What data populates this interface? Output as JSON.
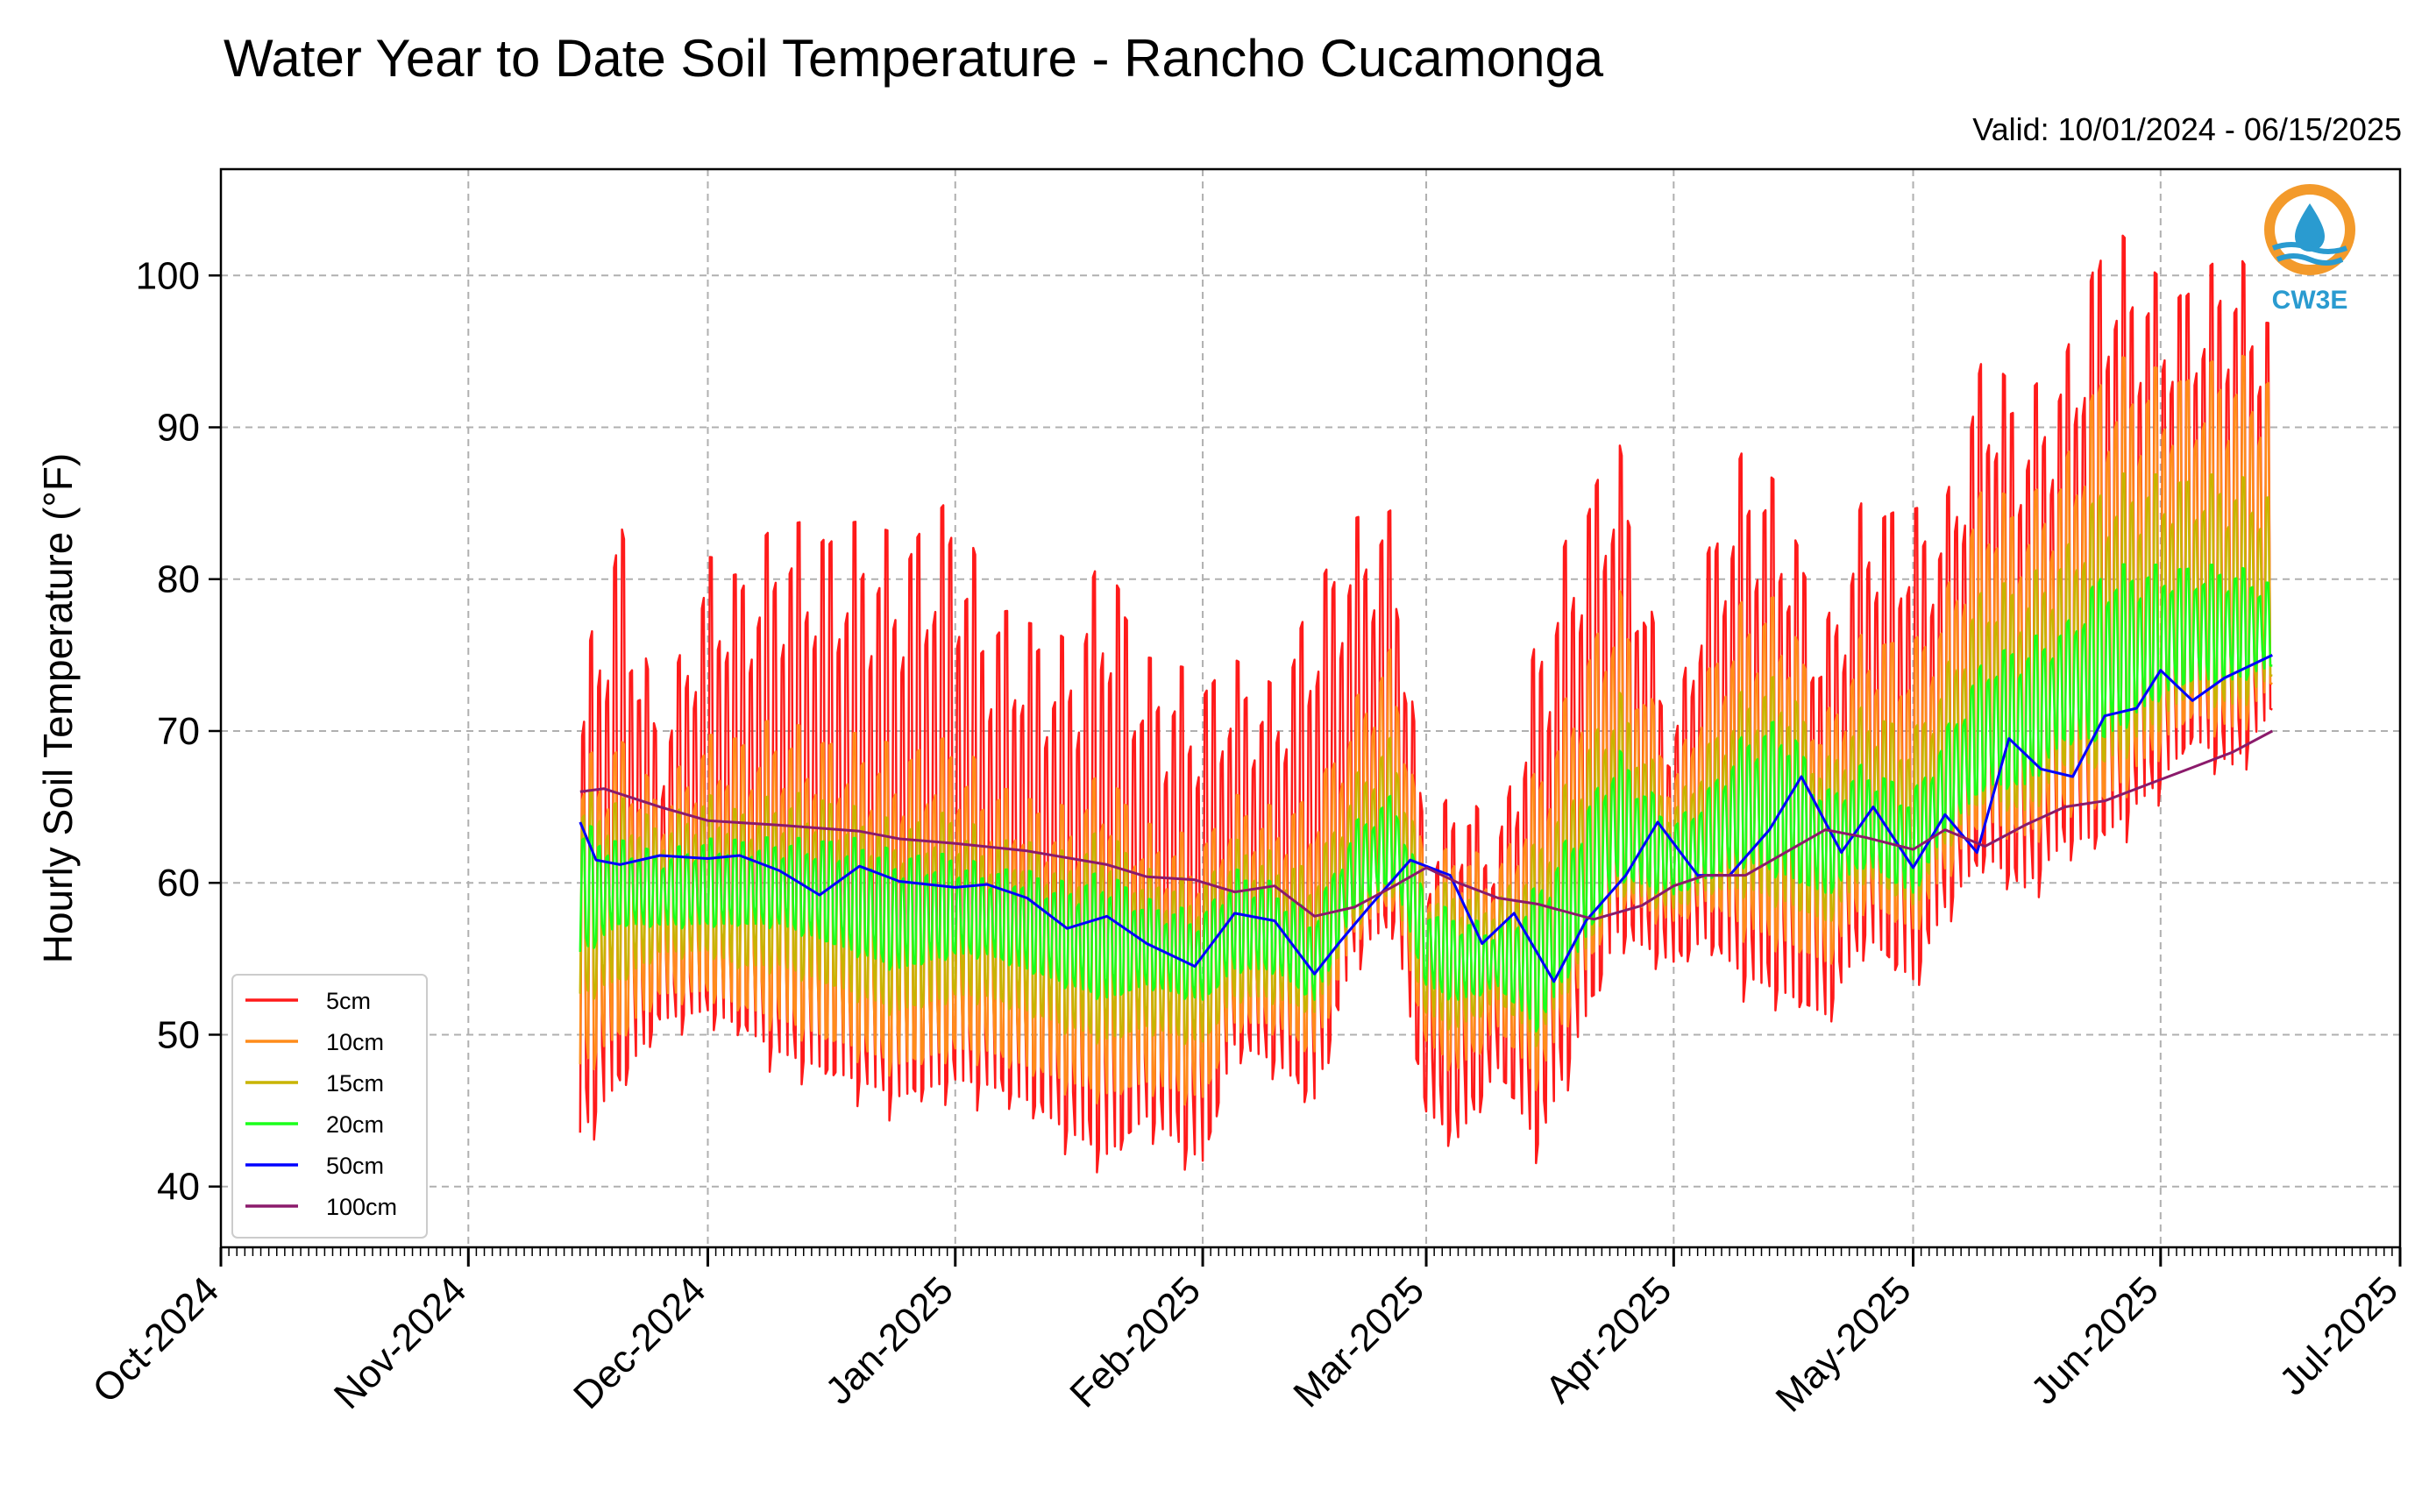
{
  "chart_data": {
    "type": "line",
    "title": "Water Year to Date Soil Temperature - Rancho Cucamonga",
    "subtitle": "Valid: 10/01/2024 - 06/15/2025",
    "ylabel": "Hourly Soil Temperature (°F)",
    "xlabel": "",
    "xlim": [
      "2024-10-01",
      "2025-07-01"
    ],
    "ylim": [
      36,
      107
    ],
    "yticks": [
      40,
      50,
      60,
      70,
      80,
      90,
      100
    ],
    "xticks": [
      {
        "date": "2024-10-01",
        "label": "Oct-2024"
      },
      {
        "date": "2024-11-01",
        "label": "Nov-2024"
      },
      {
        "date": "2024-12-01",
        "label": "Dec-2024"
      },
      {
        "date": "2025-01-01",
        "label": "Jan-2025"
      },
      {
        "date": "2025-02-01",
        "label": "Feb-2025"
      },
      {
        "date": "2025-03-01",
        "label": "Mar-2025"
      },
      {
        "date": "2025-04-01",
        "label": "Apr-2025"
      },
      {
        "date": "2025-05-01",
        "label": "May-2025"
      },
      {
        "date": "2025-06-01",
        "label": "Jun-2025"
      },
      {
        "date": "2025-07-01",
        "label": "Jul-2025"
      }
    ],
    "grid": true,
    "legend_position": "lower-left",
    "logo_text": "CW3E",
    "series": [
      {
        "name": "5cm",
        "color": "#ff1a1a",
        "x": [
          "2024-11-15",
          "2024-11-20",
          "2024-11-25",
          "2024-12-01",
          "2024-12-05",
          "2024-12-10",
          "2024-12-15",
          "2024-12-20",
          "2024-12-25",
          "2025-01-01",
          "2025-01-05",
          "2025-01-10",
          "2025-01-15",
          "2025-01-20",
          "2025-01-25",
          "2025-02-01",
          "2025-02-05",
          "2025-02-10",
          "2025-02-15",
          "2025-02-20",
          "2025-02-25",
          "2025-03-01",
          "2025-03-05",
          "2025-03-10",
          "2025-03-15",
          "2025-03-20",
          "2025-03-25",
          "2025-04-01",
          "2025-04-05",
          "2025-04-10",
          "2025-04-15",
          "2025-04-20",
          "2025-04-25",
          "2025-05-01",
          "2025-05-05",
          "2025-05-10",
          "2025-05-15",
          "2025-05-20",
          "2025-05-25",
          "2025-06-01",
          "2025-06-05",
          "2025-06-10",
          "2025-06-15"
        ],
        "y_max": [
          73,
          85,
          70,
          82,
          81,
          84,
          84,
          84,
          83,
          86,
          79,
          78,
          76,
          83,
          75,
          74,
          75,
          73,
          80,
          84,
          85,
          63,
          67,
          63,
          77,
          85,
          90,
          70,
          82,
          89,
          86,
          77,
          86,
          85,
          85,
          96,
          92,
          95,
          104,
          100,
          100,
          102,
          98
        ],
        "y_min": [
          42,
          45,
          50,
          50,
          49,
          47,
          46,
          45,
          44,
          45,
          45,
          44,
          42,
          40,
          43,
          40,
          48,
          47,
          44,
          54,
          56,
          44,
          42,
          47,
          41,
          48,
          55,
          54,
          55,
          52,
          51,
          50,
          55,
          52,
          57,
          60,
          58,
          61,
          61,
          65,
          68,
          66,
          70
        ],
        "y_mean": [
          60,
          61,
          60,
          61,
          60,
          60,
          61,
          59,
          59,
          58,
          58,
          57,
          56,
          56,
          55,
          54,
          56,
          57,
          52,
          59,
          61,
          56,
          54,
          53,
          51,
          57,
          62,
          59,
          61,
          64,
          65,
          61,
          62,
          58,
          61,
          66,
          66,
          68,
          70,
          72,
          73,
          73,
          75
        ]
      },
      {
        "name": "10cm",
        "color": "#ff8c1a",
        "x": [
          "2024-11-15",
          "2024-11-20",
          "2024-11-25",
          "2024-12-01",
          "2024-12-05",
          "2024-12-10",
          "2024-12-15",
          "2024-12-20",
          "2024-12-25",
          "2025-01-01",
          "2025-01-05",
          "2025-01-10",
          "2025-01-15",
          "2025-01-20",
          "2025-01-25",
          "2025-02-01",
          "2025-02-05",
          "2025-02-10",
          "2025-02-15",
          "2025-02-20",
          "2025-02-25",
          "2025-03-01",
          "2025-03-05",
          "2025-03-10",
          "2025-03-15",
          "2025-03-20",
          "2025-03-25",
          "2025-04-01",
          "2025-04-05",
          "2025-04-10",
          "2025-04-15",
          "2025-04-20",
          "2025-04-25",
          "2025-05-01",
          "2025-05-05",
          "2025-05-10",
          "2025-05-15",
          "2025-05-20",
          "2025-05-25",
          "2025-06-01",
          "2025-06-05",
          "2025-06-10",
          "2025-06-15"
        ],
        "y_max": [
          68,
          70,
          66,
          70,
          70,
          71,
          70,
          70,
          69,
          70,
          67,
          66,
          65,
          68,
          64,
          63,
          66,
          65,
          66,
          72,
          76,
          61,
          63,
          61,
          68,
          74,
          80,
          67,
          74,
          79,
          79,
          71,
          77,
          76,
          79,
          87,
          85,
          88,
          95,
          94,
          94,
          95,
          94
        ],
        "y_min": [
          47,
          49,
          52,
          52,
          51,
          50,
          49,
          48,
          47,
          48,
          48,
          47,
          46,
          45,
          46,
          45,
          50,
          50,
          48,
          56,
          58,
          49,
          47,
          50,
          46,
          52,
          58,
          57,
          58,
          56,
          55,
          54,
          58,
          56,
          60,
          63,
          62,
          64,
          64,
          68,
          70,
          69,
          72
        ],
        "y_mean": [
          60,
          61,
          60,
          61,
          60,
          60,
          61,
          59,
          59,
          58,
          58,
          57,
          56,
          56,
          55,
          54,
          56,
          57,
          52,
          59,
          61,
          56,
          54,
          53,
          51,
          57,
          62,
          59,
          61,
          64,
          65,
          61,
          62,
          58,
          61,
          66,
          66,
          68,
          70,
          72,
          73,
          73,
          75
        ]
      },
      {
        "name": "15cm",
        "color": "#c8b400",
        "x": [
          "2024-11-15",
          "2024-11-20",
          "2024-11-25",
          "2024-12-01",
          "2024-12-05",
          "2024-12-10",
          "2024-12-15",
          "2024-12-20",
          "2024-12-25",
          "2025-01-01",
          "2025-01-05",
          "2025-01-10",
          "2025-01-15",
          "2025-01-20",
          "2025-01-25",
          "2025-02-01",
          "2025-02-05",
          "2025-02-10",
          "2025-02-15",
          "2025-02-20",
          "2025-02-25",
          "2025-03-01",
          "2025-03-05",
          "2025-03-10",
          "2025-03-15",
          "2025-03-20",
          "2025-03-25",
          "2025-04-01",
          "2025-04-05",
          "2025-04-10",
          "2025-04-15",
          "2025-04-20",
          "2025-04-25",
          "2025-05-01",
          "2025-05-05",
          "2025-05-10",
          "2025-05-15",
          "2025-05-20",
          "2025-05-25",
          "2025-06-01",
          "2025-06-05",
          "2025-06-10",
          "2025-06-15"
        ],
        "y_max": [
          66,
          66,
          64,
          66,
          65,
          66,
          66,
          65,
          64,
          65,
          63,
          63,
          62,
          64,
          61,
          60,
          63,
          62,
          61,
          67,
          70,
          60,
          60,
          59,
          63,
          68,
          73,
          65,
          69,
          73,
          74,
          68,
          72,
          70,
          74,
          80,
          80,
          82,
          87,
          87,
          87,
          87,
          86
        ],
        "y_min": [
          52,
          53,
          55,
          55,
          54,
          54,
          53,
          52,
          51,
          52,
          52,
          51,
          50,
          49,
          50,
          49,
          52,
          52,
          51,
          57,
          59,
          51,
          50,
          52,
          49,
          54,
          59,
          58,
          59,
          59,
          58,
          57,
          60,
          58,
          62,
          65,
          64,
          67,
          67,
          70,
          72,
          71,
          73
        ],
        "y_mean": [
          60,
          61,
          60,
          61,
          60,
          60,
          61,
          59,
          59,
          58,
          58,
          57,
          56,
          56,
          55,
          54,
          56,
          57,
          52,
          59,
          61,
          56,
          54,
          53,
          51,
          57,
          62,
          59,
          61,
          64,
          65,
          61,
          62,
          58,
          61,
          66,
          66,
          68,
          70,
          72,
          73,
          73,
          75
        ]
      },
      {
        "name": "20cm",
        "color": "#1aff1a",
        "x": [
          "2024-11-15",
          "2024-11-20",
          "2024-11-25",
          "2024-12-01",
          "2024-12-05",
          "2024-12-10",
          "2024-12-15",
          "2024-12-20",
          "2024-12-25",
          "2025-01-01",
          "2025-01-05",
          "2025-01-10",
          "2025-01-15",
          "2025-01-20",
          "2025-01-25",
          "2025-02-01",
          "2025-02-05",
          "2025-02-10",
          "2025-02-15",
          "2025-02-20",
          "2025-02-25",
          "2025-03-01",
          "2025-03-05",
          "2025-03-10",
          "2025-03-15",
          "2025-03-20",
          "2025-03-25",
          "2025-04-01",
          "2025-04-05",
          "2025-04-10",
          "2025-04-15",
          "2025-04-20",
          "2025-04-25",
          "2025-05-01",
          "2025-05-05",
          "2025-05-10",
          "2025-05-15",
          "2025-05-20",
          "2025-05-25",
          "2025-06-01",
          "2025-06-05",
          "2025-06-10",
          "2025-06-15"
        ],
        "y_max": [
          64,
          63,
          62,
          63,
          63,
          63,
          63,
          63,
          62,
          62,
          61,
          61,
          60,
          61,
          59,
          58,
          61,
          60,
          58,
          64,
          66,
          59,
          58,
          57,
          60,
          64,
          69,
          64,
          66,
          70,
          71,
          66,
          68,
          66,
          70,
          75,
          76,
          77,
          81,
          81,
          81,
          81,
          80
        ],
        "y_min": [
          55,
          57,
          57,
          57,
          57,
          57,
          56,
          55,
          54,
          55,
          55,
          54,
          53,
          52,
          53,
          52,
          54,
          54,
          52,
          58,
          60,
          53,
          52,
          53,
          50,
          55,
          60,
          59,
          60,
          61,
          60,
          59,
          61,
          59,
          63,
          66,
          66,
          69,
          69,
          72,
          73,
          73,
          74
        ],
        "y_mean": [
          60,
          61,
          60,
          61,
          60,
          60,
          61,
          59,
          59,
          58,
          58,
          57,
          56,
          56,
          55,
          54,
          56,
          57,
          52,
          59,
          61,
          56,
          54,
          53,
          51,
          57,
          62,
          59,
          61,
          64,
          65,
          61,
          62,
          58,
          61,
          66,
          66,
          68,
          70,
          72,
          73,
          73,
          75
        ]
      },
      {
        "name": "50cm",
        "color": "#0000ff",
        "x": [
          "2024-11-15",
          "2024-11-17",
          "2024-11-20",
          "2024-11-25",
          "2024-12-01",
          "2024-12-05",
          "2024-12-10",
          "2024-12-15",
          "2024-12-20",
          "2024-12-25",
          "2025-01-01",
          "2025-01-05",
          "2025-01-10",
          "2025-01-15",
          "2025-01-20",
          "2025-01-25",
          "2025-01-31",
          "2025-02-05",
          "2025-02-10",
          "2025-02-15",
          "2025-02-18",
          "2025-02-22",
          "2025-02-27",
          "2025-03-04",
          "2025-03-08",
          "2025-03-12",
          "2025-03-17",
          "2025-03-21",
          "2025-03-26",
          "2025-03-30",
          "2025-04-04",
          "2025-04-08",
          "2025-04-13",
          "2025-04-17",
          "2025-04-22",
          "2025-04-26",
          "2025-05-01",
          "2025-05-05",
          "2025-05-09",
          "2025-05-13",
          "2025-05-17",
          "2025-05-21",
          "2025-05-25",
          "2025-05-29",
          "2025-06-01",
          "2025-06-05",
          "2025-06-09",
          "2025-06-15"
        ],
        "y": [
          64,
          61.5,
          61.2,
          61.8,
          61.6,
          61.8,
          60.8,
          59.2,
          61.1,
          60.1,
          59.7,
          59.9,
          59.0,
          57.0,
          57.8,
          56.0,
          54.5,
          58.0,
          57.5,
          54.0,
          56.0,
          58.5,
          61.5,
          60.5,
          56.0,
          58.0,
          53.5,
          57.5,
          60.5,
          64.0,
          60.5,
          60.5,
          63.5,
          67.0,
          62.0,
          65.0,
          61.0,
          64.5,
          62.0,
          69.5,
          67.5,
          67.0,
          71.0,
          71.5,
          74.0,
          72.0,
          73.5,
          75.0
        ]
      },
      {
        "name": "100cm",
        "color": "#8b1a6b",
        "x": [
          "2024-11-15",
          "2024-11-18",
          "2024-11-25",
          "2024-12-01",
          "2024-12-10",
          "2024-12-20",
          "2024-12-25",
          "2025-01-01",
          "2025-01-10",
          "2025-01-20",
          "2025-01-25",
          "2025-01-31",
          "2025-02-05",
          "2025-02-10",
          "2025-02-15",
          "2025-02-20",
          "2025-02-25",
          "2025-03-01",
          "2025-03-05",
          "2025-03-10",
          "2025-03-15",
          "2025-03-22",
          "2025-03-28",
          "2025-04-01",
          "2025-04-05",
          "2025-04-10",
          "2025-04-15",
          "2025-04-20",
          "2025-04-25",
          "2025-05-01",
          "2025-05-05",
          "2025-05-10",
          "2025-05-15",
          "2025-05-20",
          "2025-05-25",
          "2025-06-01",
          "2025-06-05",
          "2025-06-10",
          "2025-06-15"
        ],
        "y": [
          66,
          66.2,
          65.0,
          64.1,
          63.8,
          63.4,
          62.9,
          62.6,
          62.1,
          61.2,
          60.4,
          60.2,
          59.4,
          59.8,
          57.8,
          58.4,
          59.8,
          61.0,
          60.0,
          59.0,
          58.6,
          57.6,
          58.5,
          59.8,
          60.5,
          60.5,
          62.0,
          63.5,
          63.0,
          62.2,
          63.5,
          62.4,
          63.8,
          65.0,
          65.4,
          66.8,
          67.6,
          68.6,
          70.0
        ]
      }
    ]
  }
}
